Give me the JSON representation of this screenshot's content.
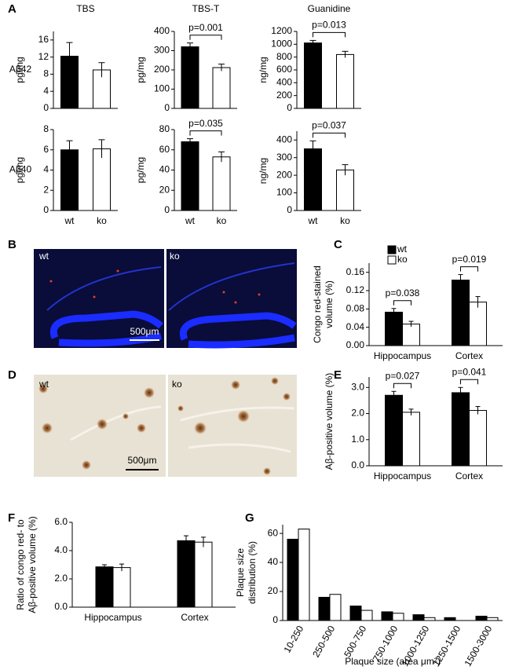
{
  "panel_labels": [
    "A",
    "B",
    "C",
    "D",
    "E",
    "F",
    "G"
  ],
  "images": [
    {
      "left": "wt",
      "right": "ko",
      "scale_bar": "500μm"
    },
    {
      "left": "wt",
      "right": "ko",
      "scale_bar": "500μm"
    }
  ],
  "chart_data": [
    {
      "type": "bar",
      "title": "TBS",
      "row_label": "Aβ42",
      "ylabel": [
        "pg/mg"
      ],
      "categories": [
        null,
        null
      ],
      "values": [
        12.2,
        9.0
      ],
      "errors": [
        3.2,
        1.7
      ],
      "colors": [
        "#000000",
        "#ffffff"
      ],
      "ylim": [
        0,
        18
      ],
      "yticks": [
        0,
        4,
        8,
        12,
        16
      ]
    },
    {
      "type": "bar",
      "title": "TBS-T",
      "ylabel": [
        "pg/mg"
      ],
      "categories": [
        null,
        null
      ],
      "values": [
        320,
        212
      ],
      "errors": [
        20,
        18
      ],
      "colors": [
        "#000000",
        "#ffffff"
      ],
      "ylim": [
        0,
        400
      ],
      "yticks": [
        0,
        100,
        200,
        300,
        400
      ],
      "annotations": [
        "p=0.001"
      ]
    },
    {
      "type": "bar",
      "title": "Guanidine",
      "ylabel": [
        "ng/mg"
      ],
      "categories": [
        null,
        null
      ],
      "values": [
        1020,
        840
      ],
      "errors": [
        40,
        50
      ],
      "colors": [
        "#000000",
        "#ffffff"
      ],
      "ylim": [
        0,
        1200
      ],
      "yticks": [
        0,
        200,
        400,
        600,
        800,
        1000,
        1200
      ],
      "annotations": [
        "p=0.013"
      ]
    },
    {
      "type": "bar",
      "row_label": "Aβ40",
      "ylabel": [
        "pg/mg"
      ],
      "categories": [
        "wt",
        "ko"
      ],
      "values": [
        6.0,
        6.1
      ],
      "errors": [
        0.9,
        0.9
      ],
      "colors": [
        "#000000",
        "#ffffff"
      ],
      "ylim": [
        0,
        8
      ],
      "yticks": [
        0,
        2,
        4,
        6,
        8
      ]
    },
    {
      "type": "bar",
      "ylabel": [
        "pg/mg"
      ],
      "categories": [
        "wt",
        "ko"
      ],
      "values": [
        68,
        53
      ],
      "errors": [
        3,
        5
      ],
      "colors": [
        "#000000",
        "#ffffff"
      ],
      "ylim": [
        0,
        80
      ],
      "yticks": [
        0,
        20,
        40,
        60,
        80
      ],
      "annotations": [
        "p=0.035"
      ]
    },
    {
      "type": "bar",
      "ylabel": [
        "ng/mg"
      ],
      "categories": [
        "wt",
        "ko"
      ],
      "values": [
        350,
        230
      ],
      "errors": [
        45,
        30
      ],
      "colors": [
        "#000000",
        "#ffffff"
      ],
      "ylim": [
        0,
        450
      ],
      "yticks": [
        0,
        100,
        200,
        300,
        400
      ],
      "annotations": [
        "p=0.037"
      ]
    },
    {
      "type": "grouped_bar",
      "ylabel": [
        "Congo red-stained",
        "volume (%)"
      ],
      "categories": [
        "Hippocampus",
        "Cortex"
      ],
      "legend": "top-left",
      "series": [
        {
          "name": "wt",
          "color": "#000000",
          "values": [
            0.073,
            0.143
          ],
          "errors": [
            0.008,
            0.012
          ]
        },
        {
          "name": "ko",
          "color": "#ffffff",
          "values": [
            0.047,
            0.095
          ],
          "errors": [
            0.006,
            0.012
          ]
        }
      ],
      "ylim": [
        0,
        0.18
      ],
      "yticks": [
        {
          "value": 0,
          "label": "0.00"
        },
        {
          "value": 0.04,
          "label": "0.04"
        },
        {
          "value": 0.08,
          "label": "0.08"
        },
        {
          "value": 0.12,
          "label": "0.12"
        },
        {
          "value": 0.16,
          "label": "0.16"
        }
      ],
      "annotations": [
        "p=0.038",
        "p=0.019"
      ]
    },
    {
      "type": "grouped_bar",
      "ylabel": [
        "Aβ-positive volume (%)"
      ],
      "categories": [
        "Hippocampus",
        "Cortex"
      ],
      "series": [
        {
          "color": "#000000",
          "values": [
            2.7,
            2.8
          ],
          "errors": [
            0.15,
            0.2
          ]
        },
        {
          "color": "#ffffff",
          "values": [
            2.05,
            2.12
          ],
          "errors": [
            0.12,
            0.15
          ]
        }
      ],
      "ylim": [
        0,
        3.4
      ],
      "yticks": [
        {
          "value": 0,
          "label": "0.0"
        },
        {
          "value": 1,
          "label": "1.0"
        },
        {
          "value": 2,
          "label": "2.0"
        },
        {
          "value": 3,
          "label": "3.0"
        }
      ],
      "annotations": [
        "p=0.027",
        "p=0.041"
      ]
    },
    {
      "type": "grouped_bar",
      "ylabel": [
        "Ratio of congo red- to",
        "Aβ-positive volume (%)"
      ],
      "categories": [
        "Hippocampus",
        "Cortex"
      ],
      "series": [
        {
          "color": "#000000",
          "values": [
            2.85,
            4.7
          ],
          "errors": [
            0.15,
            0.35
          ]
        },
        {
          "color": "#ffffff",
          "values": [
            2.8,
            4.6
          ],
          "errors": [
            0.25,
            0.35
          ]
        }
      ],
      "ylim": [
        0,
        6
      ],
      "yticks": [
        {
          "value": 0,
          "label": "0.0"
        },
        {
          "value": 2,
          "label": "2.0"
        },
        {
          "value": 4,
          "label": "4.0"
        },
        {
          "value": 6,
          "label": "6.0"
        }
      ]
    },
    {
      "type": "grouped_bar",
      "ylabel": [
        "Plaque size",
        "distribution (%)"
      ],
      "xlabel": "Plaque size (area μm²)",
      "rotate_categories": true,
      "categories": [
        "10-250",
        "250-500",
        "500-750",
        "750-1000",
        "1000-1250",
        "1250-1500",
        "1500-3000"
      ],
      "series": [
        {
          "color": "#000000",
          "values": [
            56,
            16,
            10,
            6,
            4,
            2,
            3
          ]
        },
        {
          "color": "#ffffff",
          "values": [
            63,
            18,
            7,
            5,
            2,
            0,
            2
          ]
        }
      ],
      "ylim": [
        0,
        66
      ],
      "yticks": [
        0,
        20,
        40,
        60
      ]
    }
  ]
}
